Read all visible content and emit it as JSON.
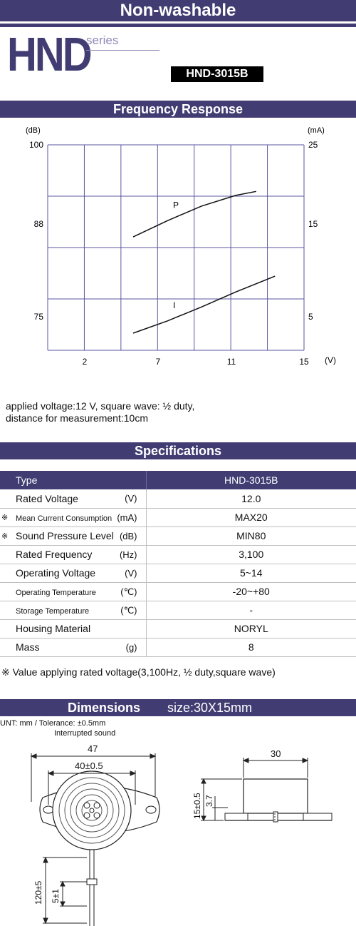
{
  "header": {
    "title": "Non-washable",
    "series_name": "HND",
    "series_word": "series",
    "model": "HND-3015B"
  },
  "frequency_response": {
    "section_title": "Frequency Response",
    "note_line1": "applied voltage:12 V, square wave: ½ duty,",
    "note_line2": "distance for measurement:10cm"
  },
  "chart_data": {
    "type": "line",
    "xlabel": "(V)",
    "ylabel": "(dB)",
    "y2label": "(mA)",
    "x_ticks": [
      "2",
      "7",
      "11",
      "15"
    ],
    "y_ticks": [
      "100",
      "88",
      "75"
    ],
    "y2_ticks": [
      "25",
      "15",
      "5"
    ],
    "xlim": [
      0,
      15
    ],
    "series": [
      {
        "name": "P",
        "axis": "left",
        "x": [
          5,
          7,
          9,
          11,
          12.2
        ],
        "y": [
          86.3,
          88.6,
          90.8,
          92.4,
          93.0
        ]
      },
      {
        "name": "I",
        "axis": "right",
        "x": [
          5,
          7,
          9,
          11,
          13.3
        ],
        "y": [
          3.4,
          4.7,
          6.2,
          7.8,
          9.5
        ]
      }
    ]
  },
  "specifications": {
    "section_title": "Specifications",
    "header": {
      "name": "Type",
      "value": "HND-3015B"
    },
    "rows": [
      {
        "mark": "",
        "name": "Rated Voltage",
        "unit": "(V)",
        "value": "12.0",
        "small": false
      },
      {
        "mark": "※",
        "name": "Mean Current Consumption",
        "unit": "(mA)",
        "value": "MAX20",
        "small": true
      },
      {
        "mark": "※",
        "name": "Sound Pressure Level",
        "unit": "(dB)",
        "value": "MIN80",
        "small": false
      },
      {
        "mark": "",
        "name": "Rated Frequency",
        "unit": "(Hz)",
        "value": "3,100",
        "small": false
      },
      {
        "mark": "",
        "name": "Operating Voltage",
        "unit": "(V)",
        "value": "5~14",
        "small": false
      },
      {
        "mark": "",
        "name": "Operating Temperature",
        "unit": "(℃)",
        "value": "-20~+80",
        "small": true
      },
      {
        "mark": "",
        "name": "Storage Temperature",
        "unit": "(℃)",
        "value": "-",
        "small": true
      },
      {
        "mark": "",
        "name": "Housing Material",
        "unit": "",
        "value": "NORYL",
        "small": false
      },
      {
        "mark": "",
        "name": "Mass",
        "unit": "(g)",
        "value": "8",
        "small": false
      }
    ],
    "note": "※ Value applying rated voltage(3,100Hz, ½ duty,square wave)"
  },
  "dimensions": {
    "section_title": "Dimensions",
    "size": "size:30X15mm",
    "unit_note": "UNT: mm  /  Tolerance: ±0.5mm",
    "sound_note": "Interrupted sound",
    "labels": {
      "width_outer": "47",
      "width_inner": "40±0.5",
      "side_width": "30",
      "height_total": "15±0.5",
      "height_top": "3.7",
      "lead_length": "120±5",
      "lead_strip": "5±1"
    }
  }
}
